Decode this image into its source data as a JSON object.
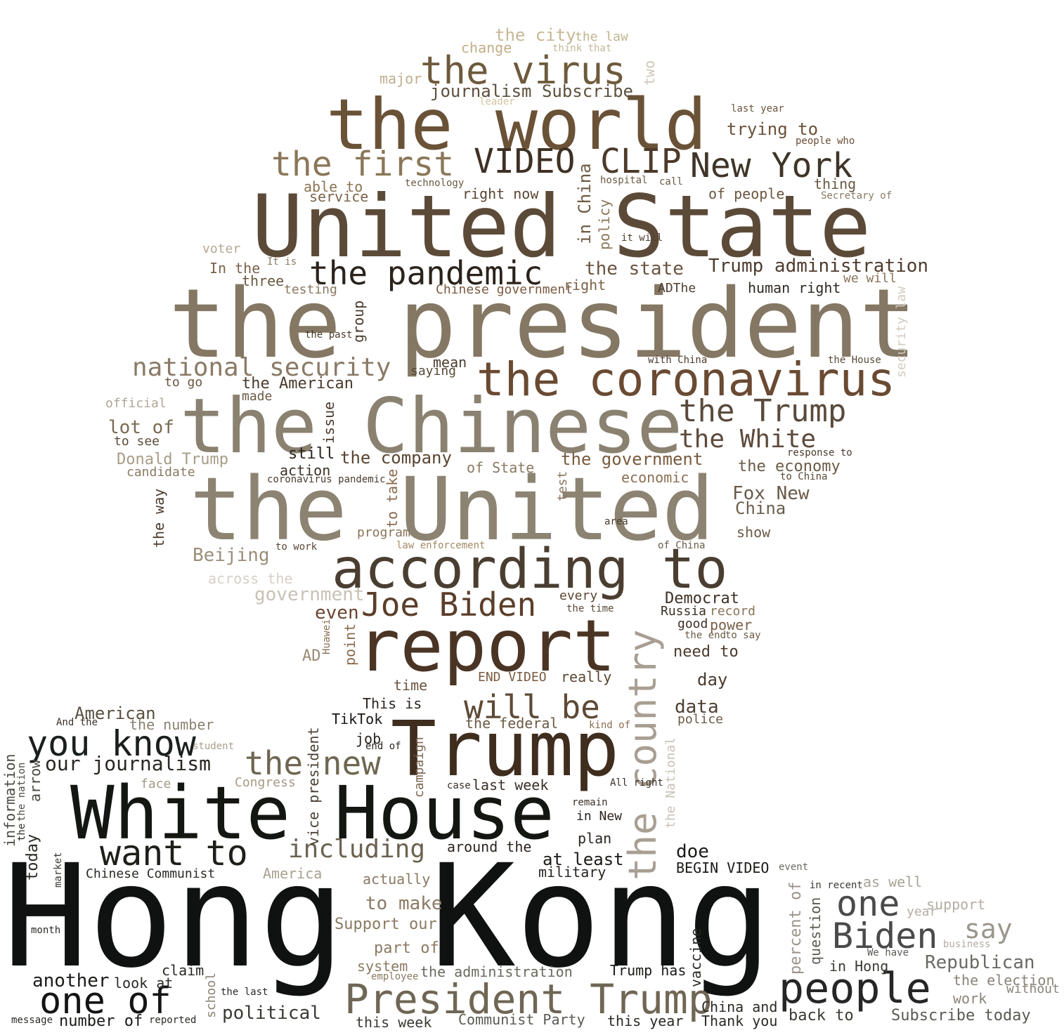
{
  "words": [
    {
      "text": "Hong Kong",
      "color": "#0f1210"
    },
    {
      "text": "the president",
      "color": "#847763"
    },
    {
      "text": "United State",
      "color": "#5c4a38"
    },
    {
      "text": "the United",
      "color": "#8c8372"
    },
    {
      "text": "the Chinese",
      "color": "#8a8170"
    },
    {
      "text": "the world",
      "color": "#6a5237"
    },
    {
      "text": "White House",
      "color": "#141612"
    },
    {
      "text": "Trump",
      "color": "#3f2d1e"
    },
    {
      "text": "report",
      "color": "#4a3424"
    },
    {
      "text": "according to",
      "color": "#4a3e31"
    },
    {
      "text": "people",
      "color": "#262626"
    },
    {
      "text": "the coronavirus",
      "color": "#6a4a32"
    },
    {
      "text": "President Trump",
      "color": "#6f6654"
    },
    {
      "text": "the country",
      "color": "#a89e92"
    },
    {
      "text": "the virus",
      "color": "#6e5a3c"
    },
    {
      "text": "the first",
      "color": "#8a7758"
    },
    {
      "text": "VIDEO",
      "color": "#3e3124"
    },
    {
      "text": "CLIP",
      "color": "#4d3a29"
    },
    {
      "text": "New York",
      "color": "#3f3528"
    },
    {
      "text": "the pandemic",
      "color": "#2a231c"
    },
    {
      "text": "Joe Biden",
      "color": "#5b3e2a"
    },
    {
      "text": "will be",
      "color": "#5e4a36"
    },
    {
      "text": "you know",
      "color": "#1a1f1c"
    },
    {
      "text": "want to",
      "color": "#1f1f1a"
    },
    {
      "text": "one of",
      "color": "#141414"
    },
    {
      "text": "the new",
      "color": "#6e6650"
    },
    {
      "text": "Biden",
      "color": "#4a4a4a"
    },
    {
      "text": "one",
      "color": "#4a4a4a"
    },
    {
      "text": "the Trump",
      "color": "#5a4a3c"
    },
    {
      "text": "the White",
      "color": "#5e4a3b"
    },
    {
      "text": "national security",
      "color": "#8a7a66"
    },
    {
      "text": "including",
      "color": "#6c6350"
    },
    {
      "text": "say",
      "color": "#9a968c"
    },
    {
      "text": "journalism Subscribe",
      "color": "#5d503e"
    },
    {
      "text": "the city",
      "color": "#c7b894"
    },
    {
      "text": "the law",
      "color": "#c0b48e"
    },
    {
      "text": "change",
      "color": "#c3ae86"
    },
    {
      "text": "think that",
      "color": "#c2b799"
    },
    {
      "text": "major",
      "color": "#bfae8e"
    },
    {
      "text": "two",
      "color": "#cfc7b6"
    },
    {
      "text": "leader",
      "color": "#d2c3a2"
    },
    {
      "text": "last year",
      "color": "#6a5640"
    },
    {
      "text": "trying to",
      "color": "#6a5238"
    },
    {
      "text": "people who",
      "color": "#6a4e38"
    },
    {
      "text": "able to",
      "color": "#8a7452"
    },
    {
      "text": "technology",
      "color": "#6a5a42"
    },
    {
      "text": "service",
      "color": "#7a6248"
    },
    {
      "text": "right now",
      "color": "#5a4632"
    },
    {
      "text": "hospital",
      "color": "#6a5a44"
    },
    {
      "text": "call",
      "color": "#6a5a44"
    },
    {
      "text": "thing",
      "color": "#6a5842"
    },
    {
      "text": "of people",
      "color": "#6a563e"
    },
    {
      "text": "Secretary of",
      "color": "#8a7a62"
    },
    {
      "text": "in China",
      "color": "#6e5a42"
    },
    {
      "text": "policy",
      "color": "#8a7658"
    },
    {
      "text": "it will",
      "color": "#4e4030"
    },
    {
      "text": "voter",
      "color": "#b4a792"
    },
    {
      "text": "In the",
      "color": "#7a624a"
    },
    {
      "text": "It is",
      "color": "#8a7a62"
    },
    {
      "text": "three",
      "color": "#6a5840"
    },
    {
      "text": "testing",
      "color": "#8a7860"
    },
    {
      "text": "the state",
      "color": "#6a5440"
    },
    {
      "text": "Trump administration",
      "color": "#4d3c2e"
    },
    {
      "text": "Chinese government",
      "color": "#7a5a40"
    },
    {
      "text": "right",
      "color": "#7a6248"
    },
    {
      "text": "ADThe",
      "color": "#4e4032"
    },
    {
      "text": "human right",
      "color": "#2f2924"
    },
    {
      "text": "we will",
      "color": "#8a7458"
    },
    {
      "text": "security law",
      "color": "#d2cbbf"
    },
    {
      "text": "group",
      "color": "#4a3a2c"
    },
    {
      "text": "the past",
      "color": "#4a3a2c"
    },
    {
      "text": "mean",
      "color": "#4a3c30"
    },
    {
      "text": "saying",
      "color": "#5a4a38"
    },
    {
      "text": "with China",
      "color": "#4a3a2c"
    },
    {
      "text": "the House",
      "color": "#5a4a3a"
    },
    {
      "text": "to go",
      "color": "#6a5440"
    },
    {
      "text": "the American",
      "color": "#4a3a2c"
    },
    {
      "text": "made",
      "color": "#6a5a44"
    },
    {
      "text": "official",
      "color": "#b0a698"
    },
    {
      "text": "lot of",
      "color": "#7a6a52"
    },
    {
      "text": "issue",
      "color": "#4a3a2e"
    },
    {
      "text": "to see",
      "color": "#5a4a38"
    },
    {
      "text": "still",
      "color": "#2a221c"
    },
    {
      "text": "the company",
      "color": "#5a4532"
    },
    {
      "text": "the government",
      "color": "#7a5a3e"
    },
    {
      "text": "Donald Trump",
      "color": "#a89c88"
    },
    {
      "text": "action",
      "color": "#3e3226"
    },
    {
      "text": "of State",
      "color": "#8a7a62"
    },
    {
      "text": "response to",
      "color": "#4a3c2e"
    },
    {
      "text": "the economy",
      "color": "#6a5a44"
    },
    {
      "text": "candidate",
      "color": "#8a7a62"
    },
    {
      "text": "coronavirus pandemic",
      "color": "#4a3a2c"
    },
    {
      "text": "to take",
      "color": "#8a6a4e"
    },
    {
      "text": "test",
      "color": "#8a7460"
    },
    {
      "text": "economic",
      "color": "#8a6e52"
    },
    {
      "text": "to China",
      "color": "#5a4a38"
    },
    {
      "text": "Fox New",
      "color": "#6a5a48"
    },
    {
      "text": "China",
      "color": "#6a5e4c"
    },
    {
      "text": "the way",
      "color": "#4a3a2c"
    },
    {
      "text": "area",
      "color": "#4a3a2c"
    },
    {
      "text": "show",
      "color": "#6a5a46"
    },
    {
      "text": "program",
      "color": "#8a7458"
    },
    {
      "text": "to work",
      "color": "#5a4634"
    },
    {
      "text": "law enforcement",
      "color": "#a28a64"
    },
    {
      "text": "of China",
      "color": "#6a5a46"
    },
    {
      "text": "Beijing",
      "color": "#9a8e7a"
    },
    {
      "text": "across the",
      "color": "#d6d0c6"
    },
    {
      "text": "government",
      "color": "#c8c2b6"
    },
    {
      "text": "every",
      "color": "#5a4634"
    },
    {
      "text": "Democrat",
      "color": "#3e3024"
    },
    {
      "text": "the time",
      "color": "#5a4a38"
    },
    {
      "text": "even",
      "color": "#6a4430"
    },
    {
      "text": "Russia",
      "color": "#3e3024"
    },
    {
      "text": "record",
      "color": "#8a7458"
    },
    {
      "text": "good",
      "color": "#3e3024"
    },
    {
      "text": "power",
      "color": "#7a5e46"
    },
    {
      "text": "Huawei",
      "color": "#8a7052"
    },
    {
      "text": "point",
      "color": "#8a6a4e"
    },
    {
      "text": "the end",
      "color": "#6a5a46"
    },
    {
      "text": "to say",
      "color": "#6a5a46"
    },
    {
      "text": "AD",
      "color": "#9a8c78"
    },
    {
      "text": "need to",
      "color": "#4a3a2c"
    },
    {
      "text": "END VIDEO",
      "color": "#7a5a40"
    },
    {
      "text": "really",
      "color": "#5a4632"
    },
    {
      "text": "time",
      "color": "#6a5440"
    },
    {
      "text": "day",
      "color": "#4a3a2e"
    },
    {
      "text": "American",
      "color": "#5a5040"
    },
    {
      "text": "This is",
      "color": "#2a2420"
    },
    {
      "text": "data",
      "color": "#4e4032"
    },
    {
      "text": "police",
      "color": "#6a5a44"
    },
    {
      "text": "And the",
      "color": "#3a3028"
    },
    {
      "text": "the number",
      "color": "#8a8270"
    },
    {
      "text": "TikTok",
      "color": "#1a1614"
    },
    {
      "text": "the federal",
      "color": "#6a5a44"
    },
    {
      "text": "kind of",
      "color": "#8a6e50"
    },
    {
      "text": "student",
      "color": "#a89e8c"
    },
    {
      "text": "job",
      "color": "#2a2420"
    },
    {
      "text": "end of",
      "color": "#2a2420"
    },
    {
      "text": "our journalism",
      "color": "#2a2622"
    },
    {
      "text": "vice president",
      "color": "#4a4034"
    },
    {
      "text": "campaign",
      "color": "#7a6450"
    },
    {
      "text": "information",
      "color": "#4a4a44"
    },
    {
      "text": "the nation",
      "color": "#4a4a44"
    },
    {
      "text": "arrow",
      "color": "#4a4a44"
    },
    {
      "text": "face",
      "color": "#a69a86"
    },
    {
      "text": "Congress",
      "color": "#a89a86"
    },
    {
      "text": "case",
      "color": "#3a3028"
    },
    {
      "text": "last week",
      "color": "#3a3028"
    },
    {
      "text": "All right",
      "color": "#3a3028"
    },
    {
      "text": "the National",
      "color": "#c8c2b8"
    },
    {
      "text": "remain",
      "color": "#3a3028"
    },
    {
      "text": "in New",
      "color": "#2a2420"
    },
    {
      "text": "today",
      "color": "#2a2a26"
    },
    {
      "text": "the",
      "color": "#2a2a26"
    },
    {
      "text": "plan",
      "color": "#2a2420"
    },
    {
      "text": "around the",
      "color": "#2a2420"
    },
    {
      "text": "market",
      "color": "#3a3a34"
    },
    {
      "text": "Chinese Communist",
      "color": "#2a2a26"
    },
    {
      "text": "America",
      "color": "#a8a08e"
    },
    {
      "text": "at least",
      "color": "#1a1a18"
    },
    {
      "text": "doe",
      "color": "#1a1a18"
    },
    {
      "text": "military",
      "color": "#2a2420"
    },
    {
      "text": "BEGIN VIDEO",
      "color": "#1a1a18"
    },
    {
      "text": "event",
      "color": "#6a6a64"
    },
    {
      "text": "actually",
      "color": "#8a7a62"
    },
    {
      "text": "percent of",
      "color": "#9a948a"
    },
    {
      "text": "question",
      "color": "#5a5a54"
    },
    {
      "text": "in recent",
      "color": "#3a3a34"
    },
    {
      "text": "as well",
      "color": "#a8a296"
    },
    {
      "text": "to make",
      "color": "#8a7a62"
    },
    {
      "text": "support",
      "color": "#b4aea2"
    },
    {
      "text": "year",
      "color": "#b4aea2"
    },
    {
      "text": "Support our",
      "color": "#8a7a62"
    },
    {
      "text": "month",
      "color": "#2a2a26"
    },
    {
      "text": "business",
      "color": "#b4aea2"
    },
    {
      "text": "part of",
      "color": "#8a7a62"
    },
    {
      "text": "We have",
      "color": "#5a5a54"
    },
    {
      "text": "Republican",
      "color": "#6a6a64"
    },
    {
      "text": "system",
      "color": "#8a7a62"
    },
    {
      "text": "claim",
      "color": "#2a2a26"
    },
    {
      "text": "employee",
      "color": "#8a7a62"
    },
    {
      "text": "the administration",
      "color": "#6a6a5e"
    },
    {
      "text": "Trump has",
      "color": "#1a1a18"
    },
    {
      "text": "vaccine",
      "color": "#2a2a26"
    },
    {
      "text": "in Hong",
      "color": "#3a3a34"
    },
    {
      "text": "the election",
      "color": "#8a8478"
    },
    {
      "text": "another",
      "color": "#1a1a18"
    },
    {
      "text": "look at",
      "color": "#2a2a26"
    },
    {
      "text": "without",
      "color": "#8a8478"
    },
    {
      "text": "school",
      "color": "#8a8274"
    },
    {
      "text": "the last",
      "color": "#2a2a26"
    },
    {
      "text": "work",
      "color": "#8a8478"
    },
    {
      "text": "political",
      "color": "#3a3a34"
    },
    {
      "text": "China and",
      "color": "#2a2a26"
    },
    {
      "text": "number of",
      "color": "#1a1a18"
    },
    {
      "text": "message",
      "color": "#2a2a26"
    },
    {
      "text": "reported",
      "color": "#2a2a26"
    },
    {
      "text": "this week",
      "color": "#3a3a34"
    },
    {
      "text": "Communist Party",
      "color": "#5a5a54"
    },
    {
      "text": "this year",
      "color": "#2a2a26"
    },
    {
      "text": "Thank you",
      "color": "#2a2a26"
    },
    {
      "text": "back to",
      "color": "#3a3a34"
    },
    {
      "text": "Subscribe today",
      "color": "#5a5a54"
    }
  ]
}
